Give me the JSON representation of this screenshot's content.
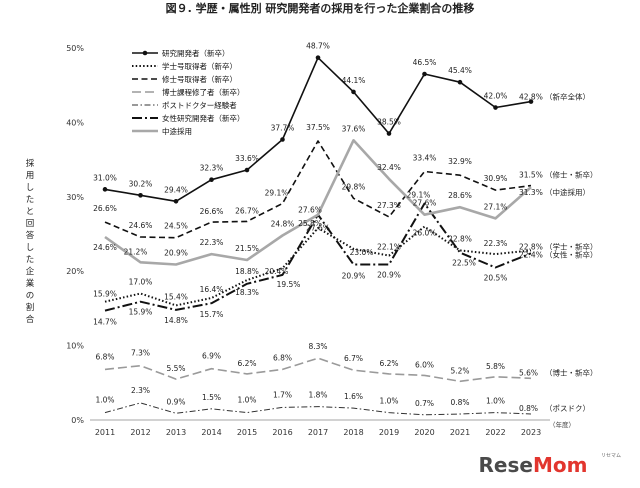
{
  "chart_data": {
    "type": "line",
    "title": "図９. 学歴・属性別 研究開発者の採用を行った企業割合の推移",
    "ylabel": "採用したと回答した企業の割合",
    "x_unit": "（年度）",
    "categories": [
      "2011",
      "2012",
      "2013",
      "2014",
      "2015",
      "2016",
      "2017",
      "2018",
      "2019",
      "2020",
      "2021",
      "2022",
      "2023"
    ],
    "ylim": [
      0,
      50
    ],
    "yticks": [
      "0%",
      "10%",
      "20%",
      "30%",
      "40%",
      "50%"
    ],
    "grid": false,
    "legend_position": "top-left",
    "series": [
      {
        "name": "研究開発者（新卒）",
        "style": "solid-marker",
        "color": "#111111",
        "values": [
          31.0,
          30.2,
          29.4,
          32.3,
          33.6,
          37.7,
          48.7,
          44.1,
          38.5,
          46.5,
          45.4,
          42.0,
          42.8
        ],
        "labels": [
          "31.0%",
          "30.2%",
          "29.4%",
          "32.3%",
          "33.6%",
          "37.7%",
          "48.7%",
          "44.1%",
          "38.5%",
          "46.5%",
          "45.4%",
          "42.0%",
          "42.8%"
        ],
        "end_note": "（新卒全体）"
      },
      {
        "name": "学士号取得者（新卒）",
        "style": "dotted",
        "color": "#111111",
        "values": [
          15.9,
          17.0,
          15.4,
          16.4,
          18.8,
          20.4,
          25.8,
          23.0,
          22.1,
          26.0,
          22.8,
          22.3,
          22.8
        ],
        "labels": [
          "15.9%",
          "17.0%",
          "15.4%",
          "16.4%",
          "18.8%",
          "20.4%",
          "25.8%",
          "23.0%",
          "22.1%",
          "26.0%",
          "22.8%",
          "22.3%",
          "22.8%"
        ],
        "end_note": "（学士・新卒）"
      },
      {
        "name": "修士号取得者（新卒）",
        "style": "dashed",
        "color": "#111111",
        "values": [
          26.6,
          24.6,
          24.5,
          26.6,
          26.7,
          29.1,
          37.5,
          29.8,
          27.3,
          33.4,
          32.9,
          30.9,
          31.5
        ],
        "labels": [
          "26.6%",
          "24.6%",
          "24.5%",
          "26.6%",
          "26.7%",
          "29.1%",
          "37.5%",
          "29.8%",
          "27.3%",
          "33.4%",
          "32.9%",
          "30.9%",
          "31.5%"
        ],
        "end_note": "（修士・新卒）"
      },
      {
        "name": "博士課程修了者（新卒）",
        "style": "gray-dashed",
        "color": "#9a9a9a",
        "values": [
          6.8,
          7.3,
          5.5,
          6.9,
          6.2,
          6.8,
          8.3,
          6.7,
          6.2,
          6.0,
          5.2,
          5.8,
          5.6
        ],
        "labels": [
          "6.8%",
          "7.3%",
          "5.5%",
          "6.9%",
          "6.2%",
          "6.8%",
          "8.3%",
          "6.7%",
          "6.2%",
          "6.0%",
          "5.2%",
          "5.8%",
          "5.6%"
        ],
        "end_note": "（博士・新卒）"
      },
      {
        "name": "ポストドクター経験者",
        "style": "dash-dot-thin",
        "color": "#333333",
        "values": [
          1.0,
          2.3,
          0.9,
          1.5,
          1.0,
          1.7,
          1.8,
          1.6,
          1.0,
          0.7,
          0.8,
          1.0,
          0.8
        ],
        "labels": [
          "1.0%",
          "2.3%",
          "0.9%",
          "1.5%",
          "1.0%",
          "1.7%",
          "1.8%",
          "1.6%",
          "1.0%",
          "0.7%",
          "0.8%",
          "1.0%",
          "0.8%"
        ],
        "end_note": "（ポスドク）"
      },
      {
        "name": "女性研究開発者（新卒）",
        "style": "dash-dot-thick",
        "color": "#111111",
        "values": [
          14.7,
          15.9,
          14.8,
          15.7,
          18.3,
          19.5,
          27.6,
          20.9,
          20.9,
          29.1,
          22.5,
          20.5,
          22.4
        ],
        "labels": [
          "14.7%",
          "15.9%",
          "14.8%",
          "15.7%",
          "18.3%",
          "19.5%",
          "27.6%",
          "20.9%",
          "20.9%",
          "29.1%",
          "22.5%",
          "20.5%",
          "22.4%"
        ],
        "end_note": "（女性・新卒）"
      },
      {
        "name": "中途採用",
        "style": "gray-thick",
        "color": "#a8a8a8",
        "values": [
          24.6,
          21.2,
          20.9,
          22.3,
          21.5,
          24.8,
          27.6,
          37.6,
          32.4,
          27.6,
          28.6,
          27.1,
          31.3
        ],
        "labels": [
          "24.6%",
          "21.2%",
          "20.9%",
          "22.3%",
          "21.5%",
          "24.8%",
          "27.6%",
          "37.6%",
          "32.4%",
          "27.6%",
          "28.6%",
          "27.1%",
          "31.3%"
        ],
        "end_note": "（中途採用）"
      }
    ]
  },
  "watermark": {
    "text_a": "Rese",
    "text_b": "Mom",
    "color_a": "#4a4a4a",
    "color_b": "#e2352e",
    "tag": "リセマム"
  }
}
